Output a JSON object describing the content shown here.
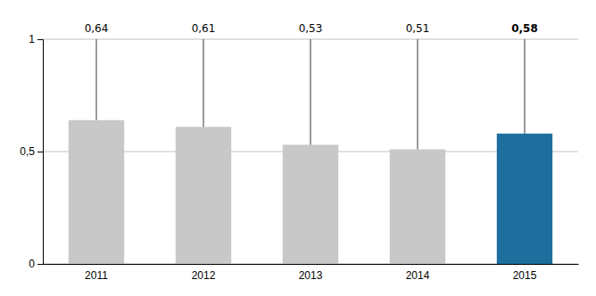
{
  "chart_data": {
    "type": "bar",
    "categories": [
      "2011",
      "2012",
      "2013",
      "2014",
      "2015"
    ],
    "values": [
      0.64,
      0.61,
      0.53,
      0.51,
      0.58
    ],
    "value_labels": [
      "0,64",
      "0,61",
      "0,53",
      "0,51",
      "0,58"
    ],
    "colors": [
      "#c8c8c8",
      "#c8c8c8",
      "#c8c8c8",
      "#c8c8c8",
      "#1e6e9e"
    ],
    "ylim": [
      0,
      1
    ],
    "yticks": [
      0,
      {
        "value": 0.5,
        "label": "0,5"
      },
      1
    ],
    "grid": true,
    "data_labels": true
  }
}
